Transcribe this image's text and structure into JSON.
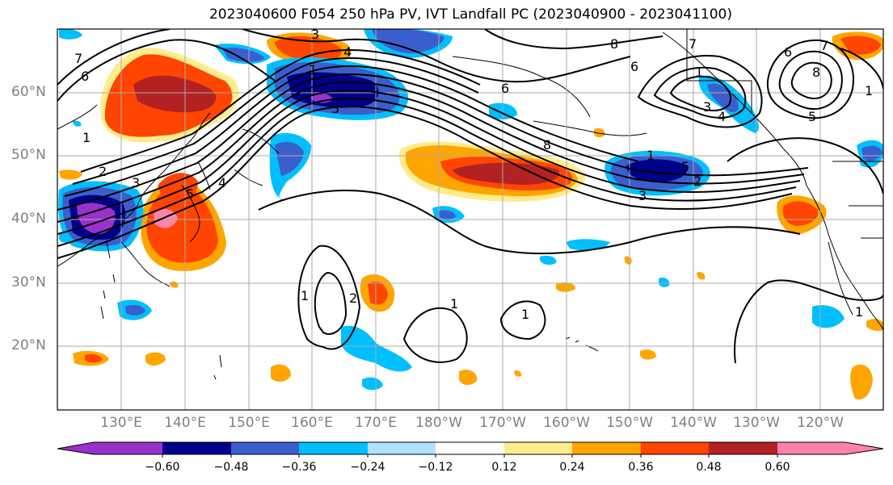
{
  "title": "2023040600 F054 250 hPa PV, IVT Landfall PC (2023040900 - 2023041100)",
  "lat_labels": [
    "60°N",
    "50°N",
    "40°N",
    "30°N",
    "20°N"
  ],
  "lon_labels": [
    "130°E",
    "140°E",
    "150°E",
    "160°E",
    "170°E",
    "180°W",
    "170°W",
    "160°W",
    "150°W",
    "140°W",
    "130°W",
    "120°W"
  ],
  "colorbar": {
    "ticks": [
      "−0.60",
      "−0.48",
      "−0.36",
      "−0.24",
      "−0.12",
      "0.12",
      "0.24",
      "0.36",
      "0.48",
      "0.60"
    ],
    "colors": [
      "#9932cc",
      "#00008b",
      "#3a5fcd",
      "#00bfff",
      "#b0e2ff",
      "#ffffff",
      "#ffec8b",
      "#ffa500",
      "#ff4500",
      "#b22222",
      "#ff82ab"
    ]
  },
  "contour_labels": [
    "6",
    "1",
    "2",
    "3",
    "5",
    "4",
    "7",
    "3",
    "4",
    "1",
    "6",
    "8",
    "6",
    "7",
    "8",
    "1",
    "5",
    "3",
    "2",
    "1",
    "3",
    "1",
    "2",
    "1",
    "1",
    "8",
    "6",
    "7",
    "5",
    "1",
    "3",
    "4",
    "1"
  ]
}
